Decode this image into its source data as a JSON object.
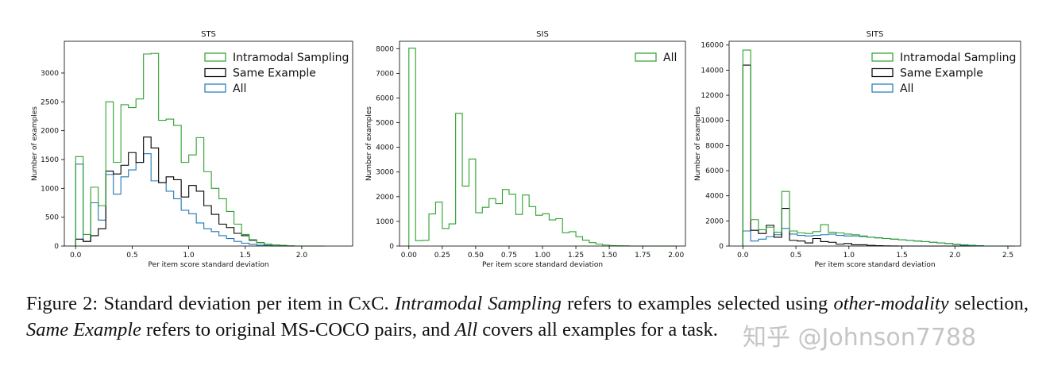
{
  "chart_data": [
    {
      "type": "histogram",
      "title": "STS",
      "xlabel": "Per item score standard deviation",
      "ylabel": "Number of examples",
      "xlim": [
        -0.1,
        2.45
      ],
      "ylim": [
        0,
        3550
      ],
      "xticks": [
        0.0,
        0.5,
        1.0,
        1.5,
        2.0
      ],
      "xtick_labels": [
        "0.0",
        "0.5",
        "1.0",
        "1.5",
        "2.0"
      ],
      "yticks": [
        0,
        500,
        1000,
        1500,
        2000,
        2500,
        3000
      ],
      "ytick_labels": [
        "0",
        "500",
        "1000",
        "1500",
        "2000",
        "2500",
        "3000"
      ],
      "legend_position": "upper-right",
      "bin_start": 0.0,
      "bin_width": 0.0667,
      "series": [
        {
          "name": "Intramodal Sampling",
          "color": "#2ca02c",
          "values": [
            1550,
            200,
            1020,
            700,
            2500,
            1450,
            2450,
            2400,
            2550,
            3330,
            3340,
            2180,
            2200,
            2090,
            1450,
            1580,
            1880,
            1290,
            1000,
            820,
            600,
            380,
            200,
            110,
            60,
            30,
            20,
            10,
            5,
            0,
            0,
            0,
            0
          ]
        },
        {
          "name": "Same Example",
          "color": "#000000",
          "values": [
            120,
            80,
            180,
            300,
            1300,
            1250,
            1400,
            1620,
            1450,
            1890,
            1700,
            1100,
            1200,
            1150,
            850,
            1050,
            950,
            700,
            550,
            380,
            320,
            220,
            180,
            100,
            60,
            30,
            20,
            10,
            0,
            0,
            0,
            0,
            0
          ]
        },
        {
          "name": "All",
          "color": "#1f77b4",
          "values": [
            1420,
            80,
            750,
            450,
            1240,
            900,
            1200,
            1320,
            1450,
            1600,
            1130,
            1100,
            950,
            820,
            620,
            560,
            400,
            300,
            250,
            180,
            130,
            80,
            50,
            30,
            15,
            8,
            0,
            0,
            0,
            0,
            0,
            0,
            0
          ]
        }
      ]
    },
    {
      "type": "histogram",
      "title": "SIS",
      "xlabel": "Per item score standard deviation",
      "ylabel": "Number of examples",
      "xlim": [
        -0.07,
        2.07
      ],
      "ylim": [
        0,
        8300
      ],
      "xticks": [
        0.0,
        0.25,
        0.5,
        0.75,
        1.0,
        1.25,
        1.5,
        1.75,
        2.0
      ],
      "xtick_labels": [
        "0.00",
        "0.25",
        "0.50",
        "0.75",
        "1.00",
        "1.25",
        "1.50",
        "1.75",
        "2.00"
      ],
      "yticks": [
        0,
        1000,
        2000,
        3000,
        4000,
        5000,
        6000,
        7000,
        8000
      ],
      "ytick_labels": [
        "0",
        "1000",
        "2000",
        "3000",
        "4000",
        "5000",
        "6000",
        "7000",
        "8000"
      ],
      "legend_position": "upper-right",
      "bin_start": 0.0,
      "bin_width": 0.05,
      "series": [
        {
          "name": "All",
          "color": "#2ca02c",
          "values": [
            8020,
            220,
            230,
            1300,
            1780,
            710,
            900,
            5380,
            2430,
            3530,
            1350,
            1570,
            1920,
            1720,
            2290,
            2100,
            1280,
            2070,
            1600,
            1250,
            1310,
            1060,
            1110,
            540,
            580,
            380,
            240,
            140,
            80,
            40,
            20,
            10,
            5,
            0,
            0,
            0,
            0,
            0,
            0,
            0
          ]
        }
      ]
    },
    {
      "type": "histogram",
      "title": "SITS",
      "xlabel": "Per item score standard deviation",
      "ylabel": "Number of examples",
      "xlim": [
        -0.13,
        2.62
      ],
      "ylim": [
        0,
        16300
      ],
      "xticks": [
        0.0,
        0.5,
        1.0,
        1.5,
        2.0,
        2.5
      ],
      "xtick_labels": [
        "0.0",
        "0.5",
        "1.0",
        "1.5",
        "2.0",
        "2.5"
      ],
      "yticks": [
        0,
        2000,
        4000,
        6000,
        8000,
        10000,
        12000,
        14000,
        16000
      ],
      "ytick_labels": [
        "0",
        "2000",
        "4000",
        "6000",
        "8000",
        "10000",
        "12000",
        "14000",
        "16000"
      ],
      "legend_position": "upper-right",
      "bin_start": 0.0,
      "bin_width": 0.0733,
      "series": [
        {
          "name": "Intramodal Sampling",
          "color": "#2ca02c",
          "values": [
            15600,
            2100,
            1300,
            1500,
            1100,
            4350,
            1200,
            1050,
            1000,
            1150,
            1700,
            1100,
            1050,
            950,
            900,
            800,
            700,
            650,
            600,
            550,
            500,
            450,
            400,
            350,
            300,
            250,
            200,
            120,
            60,
            30,
            0,
            0,
            0,
            0,
            0
          ]
        },
        {
          "name": "Same Example",
          "color": "#000000",
          "values": [
            14400,
            1250,
            1000,
            1650,
            700,
            3000,
            450,
            400,
            250,
            600,
            350,
            300,
            150,
            200,
            100,
            100,
            50,
            30,
            10,
            5,
            0,
            0,
            0,
            0,
            0,
            0,
            0,
            0,
            0,
            0,
            0,
            0,
            0,
            0,
            0
          ]
        },
        {
          "name": "All",
          "color": "#1f77b4",
          "values": [
            1200,
            400,
            550,
            750,
            900,
            1400,
            950,
            850,
            800,
            850,
            900,
            950,
            850,
            800,
            800,
            750,
            700,
            650,
            600,
            550,
            500,
            450,
            400,
            350,
            300,
            250,
            200,
            150,
            100,
            60,
            30,
            0,
            0,
            0,
            0
          ]
        }
      ]
    }
  ],
  "caption": {
    "label": "Figure 2:",
    "text_1": " Standard deviation per item in CxC. ",
    "em_1": "Intramodal Sampling",
    "text_2": " refers to examples selected using ",
    "em_2": "other-modality",
    "text_3": " selection, ",
    "em_3": "Same Example",
    "text_4": " refers to original MS-COCO pairs, and ",
    "em_4": "All",
    "text_5": " covers all examples for a task."
  },
  "watermark": "知乎 @Johnson7788"
}
